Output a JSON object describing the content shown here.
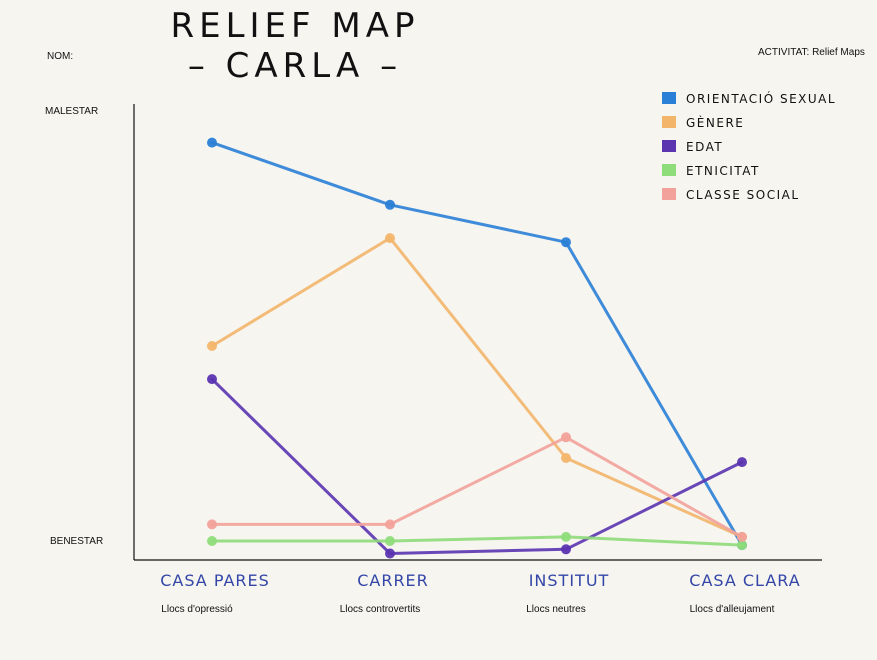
{
  "header": {
    "title_line1": "RELIEF MAP",
    "title_line2": "– CARLA –",
    "nom_label": "NOM:",
    "activitat_label": "ACTIVITAT: Relief Maps"
  },
  "chart_data": {
    "type": "line",
    "title": "",
    "y_axis": {
      "top_label": "MALESTAR",
      "bottom_label": "BENESTAR",
      "scale": "qualitative 0 (benestar) – 100 (malestar)"
    },
    "ylim": [
      0,
      100
    ],
    "categories": [
      "CASA PARES",
      "CARRER",
      "INSTITUT",
      "CASA CLARA"
    ],
    "category_groups": [
      "Llocs d'opressió",
      "Llocs controvertits",
      "Llocs neutres",
      "Llocs d'alleujament"
    ],
    "grid": false,
    "legend_position": "top-right",
    "series": [
      {
        "name": "ORIENTACIÓ SEXUAL",
        "color": "#2a7fd6",
        "values": [
          96,
          81,
          72,
          -1
        ]
      },
      {
        "name": "GÈNERE",
        "color": "#f3b56a",
        "values": [
          47,
          73,
          20,
          1
        ]
      },
      {
        "name": "EDAT",
        "color": "#5b34b0",
        "values": [
          39,
          -3,
          -2,
          19
        ]
      },
      {
        "name": "ETNICITAT",
        "color": "#8fdc7a",
        "values": [
          0,
          0,
          1,
          -1
        ]
      },
      {
        "name": "CLASSE SOCIAL",
        "color": "#f2a29a",
        "values": [
          4,
          4,
          25,
          1
        ]
      }
    ]
  }
}
